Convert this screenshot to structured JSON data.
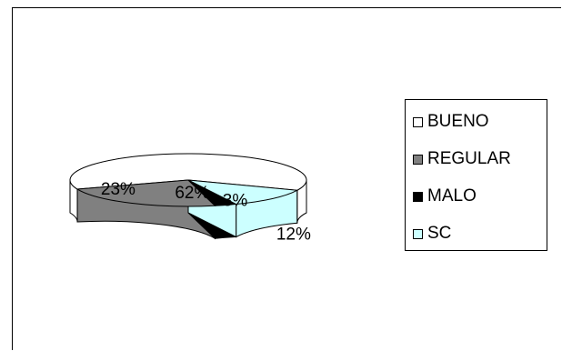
{
  "chart_data": {
    "type": "pie",
    "title": "",
    "categories": [
      "BUENO",
      "REGULAR",
      "MALO",
      "SC"
    ],
    "values": [
      62,
      23,
      3,
      12
    ],
    "labels": [
      "62%",
      "23%",
      "3%",
      "12%"
    ],
    "colors": [
      "#ffffff",
      "#808080",
      "#000000",
      "#ccffff"
    ],
    "legend_position": "right",
    "style": "3d"
  },
  "legend": {
    "items": [
      {
        "label": "BUENO",
        "color": "#ffffff"
      },
      {
        "label": "REGULAR",
        "color": "#808080"
      },
      {
        "label": "MALO",
        "color": "#000000"
      },
      {
        "label": "SC",
        "color": "#ccffff"
      }
    ]
  }
}
